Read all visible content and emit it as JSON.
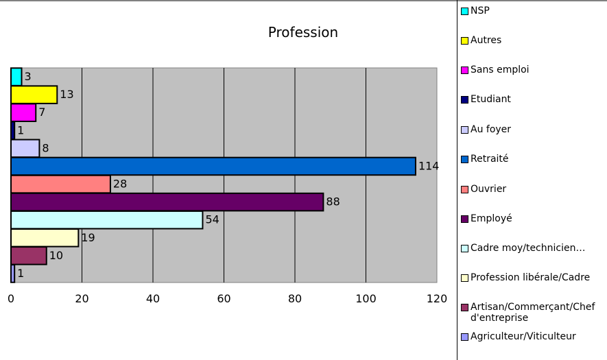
{
  "chart_data": {
    "type": "bar",
    "orientation": "horizontal",
    "title": "Profession",
    "xlabel": "",
    "ylabel": "",
    "xlim": [
      0,
      120
    ],
    "x_ticks": [
      0,
      20,
      40,
      60,
      80,
      100,
      120
    ],
    "grid": true,
    "legend_position": "right",
    "plot_background": "#c0c0c0",
    "series": [
      {
        "name": "Agriculteur/Viticulteur",
        "value": 1,
        "color": "#9999ff"
      },
      {
        "name": "Artisan/Commerçant/Chef d'entreprise",
        "value": 10,
        "color": "#993366"
      },
      {
        "name": "Profession libérale/Cadre",
        "value": 19,
        "color": "#ffffcc"
      },
      {
        "name": "Cadre moy/technicien…",
        "value": 54,
        "color": "#ccffff"
      },
      {
        "name": "Employé",
        "value": 88,
        "color": "#660066"
      },
      {
        "name": "Ouvrier",
        "value": 28,
        "color": "#ff8080"
      },
      {
        "name": "Retraité",
        "value": 114,
        "color": "#0066cc"
      },
      {
        "name": "Au foyer",
        "value": 8,
        "color": "#ccccff"
      },
      {
        "name": "Etudiant",
        "value": 1,
        "color": "#000080"
      },
      {
        "name": "Sans emploi",
        "value": 7,
        "color": "#ff00ff"
      },
      {
        "name": "Autres",
        "value": 13,
        "color": "#ffff00"
      },
      {
        "name": "NSP",
        "value": 3,
        "color": "#00ffff"
      }
    ]
  }
}
